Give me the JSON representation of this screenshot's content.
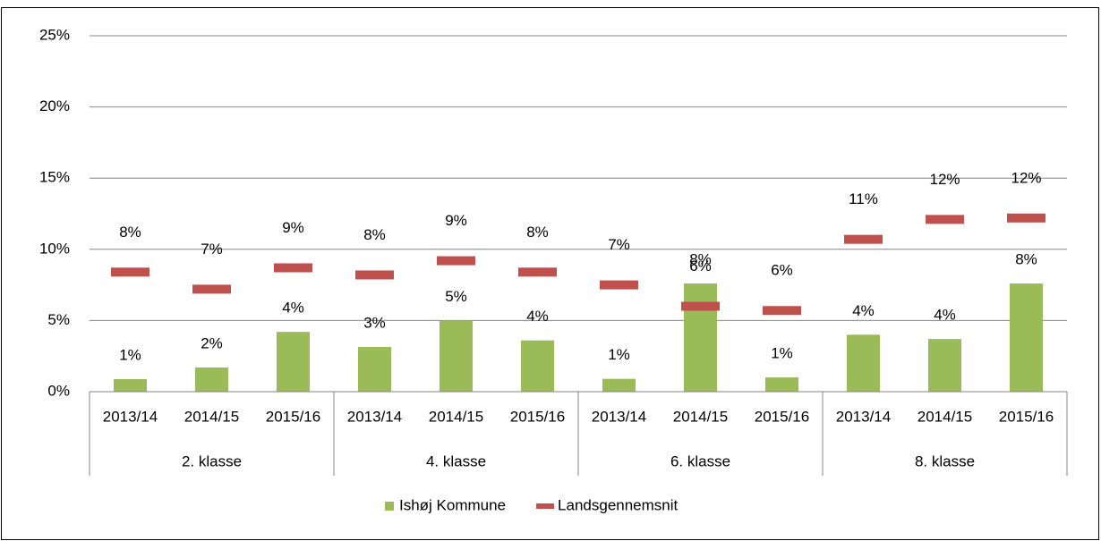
{
  "chart_data": {
    "type": "bar",
    "categories": [
      "2013/14",
      "2014/15",
      "2015/16",
      "2013/14",
      "2014/15",
      "2015/16",
      "2013/14",
      "2014/15",
      "2015/16",
      "2013/14",
      "2014/15",
      "2015/16"
    ],
    "groups": [
      "2. klasse",
      "4. klasse",
      "6. klasse",
      "8. klasse"
    ],
    "series": [
      {
        "name": "Ishøj Kommune",
        "type": "bar",
        "color": "#9bbb59",
        "values": [
          0.88,
          1.7,
          4.2,
          3.14,
          5.0,
          3.6,
          0.9,
          7.6,
          1.0,
          4.0,
          3.7,
          7.6
        ],
        "value_labels": [
          "1%",
          "2%",
          "4%",
          "3%",
          "5%",
          "4%",
          "1%",
          "8%",
          "1%",
          "4%",
          "4%",
          "8%"
        ]
      },
      {
        "name": "Landsgennemsnit",
        "type": "marker",
        "color": "#c0504d",
        "values": [
          8.4,
          7.2,
          8.7,
          8.2,
          9.2,
          8.4,
          7.5,
          6.0,
          5.7,
          10.7,
          12.1,
          12.2
        ],
        "value_labels": [
          "8%",
          "7%",
          "9%",
          "8%",
          "9%",
          "8%",
          "7%",
          "6%",
          "6%",
          "11%",
          "12%",
          "12%"
        ]
      }
    ],
    "ylim": [
      0,
      25
    ],
    "yticks": [
      {
        "value": 0,
        "label": "0%"
      },
      {
        "value": 5,
        "label": "5%"
      },
      {
        "value": 10,
        "label": "10%"
      },
      {
        "value": 15,
        "label": "15%"
      },
      {
        "value": 20,
        "label": "20%"
      },
      {
        "value": 25,
        "label": "25%"
      }
    ],
    "grid": true,
    "legend": "bottom"
  }
}
